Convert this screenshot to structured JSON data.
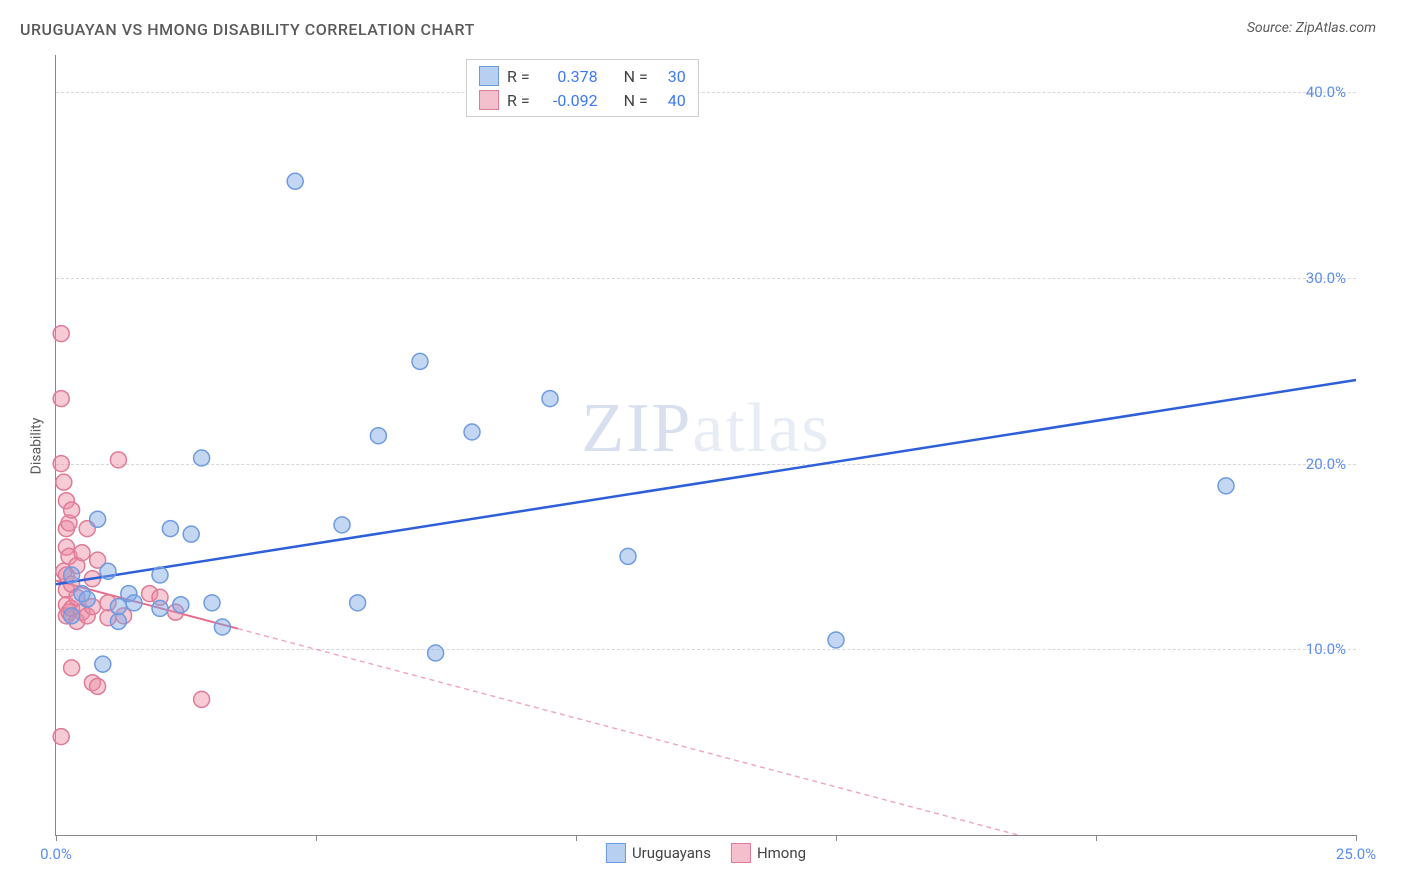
{
  "title": "URUGUAYAN VS HMONG DISABILITY CORRELATION CHART",
  "source": "Source: ZipAtlas.com",
  "y_axis_label": "Disability",
  "watermark_a": "ZIP",
  "watermark_b": "atlas",
  "chart": {
    "type": "scatter",
    "background_color": "#ffffff",
    "grid_color": "#d7d7d7",
    "axis_color": "#888888",
    "tick_label_color": "#5b8def",
    "xlim": [
      0,
      25
    ],
    "ylim": [
      0,
      42
    ],
    "x_ticks": [
      0,
      5,
      10,
      15,
      20,
      25
    ],
    "x_tick_labels": {
      "0": "0.0%",
      "25": "25.0%"
    },
    "y_ticks": [
      10,
      20,
      30,
      40
    ],
    "y_tick_labels": [
      "10.0%",
      "20.0%",
      "30.0%",
      "40.0%"
    ],
    "marker_radius": 8,
    "marker_stroke_width": 1.5,
    "series": [
      {
        "name": "Uruguayans",
        "color_fill": "rgba(123,167,229,0.45)",
        "color_stroke": "#6e9be0",
        "R": "0.378",
        "N": "30",
        "trend": {
          "x1": 0,
          "y1": 13.5,
          "x2": 25,
          "y2": 24.5,
          "color": "#2d5fd9",
          "width": 2.5,
          "dash": "none",
          "solid_until_x": 25
        },
        "points": [
          {
            "x": 0.3,
            "y": 14.0
          },
          {
            "x": 0.3,
            "y": 11.8
          },
          {
            "x": 0.5,
            "y": 13.0
          },
          {
            "x": 0.6,
            "y": 12.7
          },
          {
            "x": 0.8,
            "y": 17.0
          },
          {
            "x": 0.9,
            "y": 9.2
          },
          {
            "x": 1.0,
            "y": 14.2
          },
          {
            "x": 1.2,
            "y": 11.5
          },
          {
            "x": 1.2,
            "y": 12.3
          },
          {
            "x": 1.4,
            "y": 13.0
          },
          {
            "x": 1.5,
            "y": 12.5
          },
          {
            "x": 2.0,
            "y": 14.0
          },
          {
            "x": 2.0,
            "y": 12.2
          },
          {
            "x": 2.2,
            "y": 16.5
          },
          {
            "x": 2.4,
            "y": 12.4
          },
          {
            "x": 2.6,
            "y": 16.2
          },
          {
            "x": 2.8,
            "y": 20.3
          },
          {
            "x": 3.0,
            "y": 12.5
          },
          {
            "x": 3.2,
            "y": 11.2
          },
          {
            "x": 4.6,
            "y": 35.2
          },
          {
            "x": 5.5,
            "y": 16.7
          },
          {
            "x": 5.8,
            "y": 12.5
          },
          {
            "x": 6.2,
            "y": 21.5
          },
          {
            "x": 7.0,
            "y": 25.5
          },
          {
            "x": 7.3,
            "y": 9.8
          },
          {
            "x": 8.0,
            "y": 21.7
          },
          {
            "x": 9.5,
            "y": 23.5
          },
          {
            "x": 11.0,
            "y": 15.0
          },
          {
            "x": 15.0,
            "y": 10.5
          },
          {
            "x": 22.5,
            "y": 18.8
          }
        ]
      },
      {
        "name": "Hmong",
        "color_fill": "rgba(236,140,165,0.45)",
        "color_stroke": "#e07a97",
        "R": "-0.092",
        "N": "40",
        "trend": {
          "x1": 0,
          "y1": 13.7,
          "x2": 18.5,
          "y2": 0,
          "color": "#e66a8c",
          "width": 2,
          "dash": "5,4",
          "solid_until_x": 3.5
        },
        "points": [
          {
            "x": 0.1,
            "y": 27.0
          },
          {
            "x": 0.1,
            "y": 23.5
          },
          {
            "x": 0.1,
            "y": 20.0
          },
          {
            "x": 0.1,
            "y": 5.3
          },
          {
            "x": 0.15,
            "y": 19.0
          },
          {
            "x": 0.15,
            "y": 14.2
          },
          {
            "x": 0.2,
            "y": 18.0
          },
          {
            "x": 0.2,
            "y": 16.5
          },
          {
            "x": 0.2,
            "y": 15.5
          },
          {
            "x": 0.2,
            "y": 14.0
          },
          {
            "x": 0.2,
            "y": 13.2
          },
          {
            "x": 0.2,
            "y": 12.4
          },
          {
            "x": 0.2,
            "y": 11.8
          },
          {
            "x": 0.25,
            "y": 16.8
          },
          {
            "x": 0.25,
            "y": 15.0
          },
          {
            "x": 0.25,
            "y": 12.0
          },
          {
            "x": 0.3,
            "y": 17.5
          },
          {
            "x": 0.3,
            "y": 13.5
          },
          {
            "x": 0.3,
            "y": 12.2
          },
          {
            "x": 0.3,
            "y": 9.0
          },
          {
            "x": 0.4,
            "y": 14.5
          },
          {
            "x": 0.4,
            "y": 12.8
          },
          {
            "x": 0.4,
            "y": 11.5
          },
          {
            "x": 0.5,
            "y": 15.2
          },
          {
            "x": 0.5,
            "y": 12.0
          },
          {
            "x": 0.6,
            "y": 16.5
          },
          {
            "x": 0.6,
            "y": 11.8
          },
          {
            "x": 0.7,
            "y": 13.8
          },
          {
            "x": 0.7,
            "y": 12.3
          },
          {
            "x": 0.7,
            "y": 8.2
          },
          {
            "x": 0.8,
            "y": 14.8
          },
          {
            "x": 0.8,
            "y": 8.0
          },
          {
            "x": 1.0,
            "y": 12.5
          },
          {
            "x": 1.0,
            "y": 11.7
          },
          {
            "x": 1.2,
            "y": 20.2
          },
          {
            "x": 1.3,
            "y": 11.8
          },
          {
            "x": 1.8,
            "y": 13.0
          },
          {
            "x": 2.0,
            "y": 12.8
          },
          {
            "x": 2.3,
            "y": 12.0
          },
          {
            "x": 2.8,
            "y": 7.3
          }
        ]
      }
    ]
  },
  "legend_top": {
    "r_label": "R =",
    "n_label": "N ="
  },
  "bottom_legend": {
    "label_a": "Uruguayans",
    "label_b": "Hmong"
  }
}
